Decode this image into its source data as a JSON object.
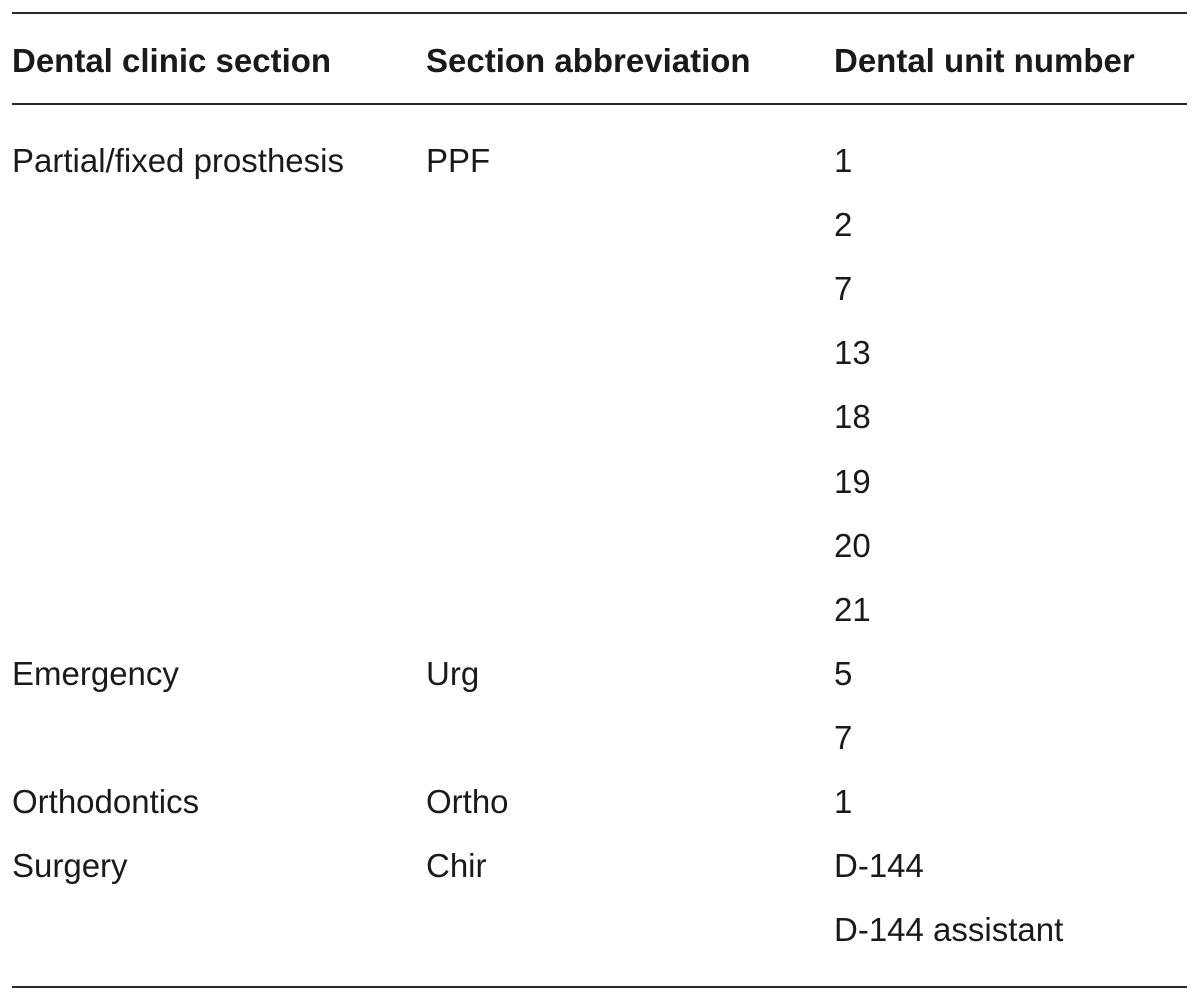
{
  "table": {
    "headers": [
      "Dental clinic section",
      "Section abbreviation",
      "Dental unit number"
    ],
    "rows": [
      {
        "section": "Partial/fixed prosthesis",
        "abbreviation": "PPF",
        "unit": "1"
      },
      {
        "section": "",
        "abbreviation": "",
        "unit": "2"
      },
      {
        "section": "",
        "abbreviation": "",
        "unit": "7"
      },
      {
        "section": "",
        "abbreviation": "",
        "unit": "13"
      },
      {
        "section": "",
        "abbreviation": "",
        "unit": "18"
      },
      {
        "section": "",
        "abbreviation": "",
        "unit": "19"
      },
      {
        "section": "",
        "abbreviation": "",
        "unit": "20"
      },
      {
        "section": "",
        "abbreviation": "",
        "unit": "21"
      },
      {
        "section": "Emergency",
        "abbreviation": "Urg",
        "unit": "5"
      },
      {
        "section": "",
        "abbreviation": "",
        "unit": "7"
      },
      {
        "section": "Orthodontics",
        "abbreviation": "Ortho",
        "unit": "1"
      },
      {
        "section": "Surgery",
        "abbreviation": "Chir",
        "unit": "D-144"
      },
      {
        "section": "",
        "abbreviation": "",
        "unit": "D-144 assistant"
      }
    ]
  }
}
